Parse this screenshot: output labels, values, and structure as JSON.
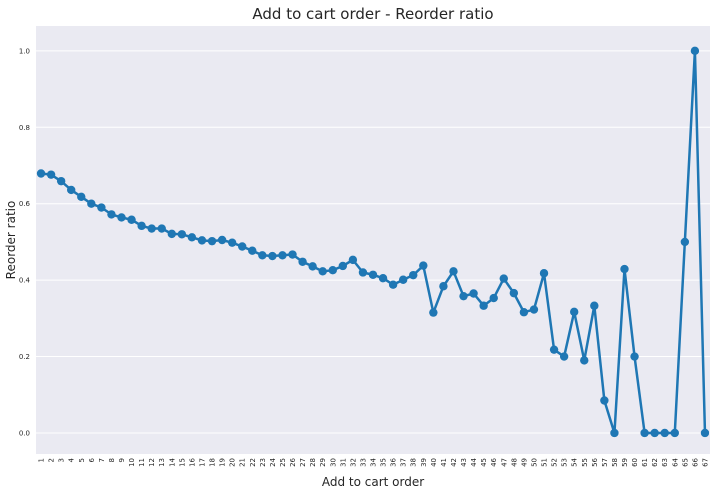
{
  "chart_data": {
    "type": "line",
    "title": "Add to cart order - Reorder ratio",
    "xlabel": "Add to cart order",
    "ylabel": "Reorder ratio",
    "ylim": [
      -0.055,
      1.065
    ],
    "yticks": [
      "0.0",
      "0.2",
      "0.4",
      "0.6",
      "0.8",
      "1.0"
    ],
    "grid": true,
    "colors": {
      "background": "#EAEAF2",
      "grid": "#FFFFFF",
      "line": "#1F77B4"
    },
    "categories": [
      "1",
      "2",
      "3",
      "4",
      "5",
      "6",
      "7",
      "8",
      "9",
      "10",
      "11",
      "12",
      "13",
      "14",
      "15",
      "16",
      "17",
      "18",
      "19",
      "20",
      "21",
      "22",
      "23",
      "24",
      "25",
      "26",
      "27",
      "28",
      "29",
      "30",
      "31",
      "32",
      "33",
      "34",
      "35",
      "36",
      "37",
      "38",
      "39",
      "40",
      "41",
      "42",
      "43",
      "44",
      "45",
      "46",
      "47",
      "48",
      "49",
      "50",
      "51",
      "52",
      "53",
      "54",
      "55",
      "56",
      "57",
      "58",
      "59",
      "60",
      "61",
      "62",
      "63",
      "64",
      "65",
      "66",
      "67"
    ],
    "series": [
      {
        "values": [
          0.679,
          0.676,
          0.659,
          0.636,
          0.618,
          0.6,
          0.59,
          0.572,
          0.564,
          0.558,
          0.542,
          0.535,
          0.535,
          0.521,
          0.52,
          0.512,
          0.504,
          0.502,
          0.505,
          0.498,
          0.488,
          0.477,
          0.465,
          0.463,
          0.465,
          0.467,
          0.448,
          0.436,
          0.423,
          0.426,
          0.437,
          0.453,
          0.42,
          0.414,
          0.405,
          0.388,
          0.401,
          0.413,
          0.438,
          0.315,
          0.384,
          0.423,
          0.358,
          0.365,
          0.333,
          0.353,
          0.404,
          0.366,
          0.316,
          0.323,
          0.418,
          0.218,
          0.2,
          0.317,
          0.19,
          0.333,
          0.085,
          0.0,
          0.429,
          0.2,
          0.0,
          0.0,
          0.0,
          0.0,
          0.5,
          1.0,
          0.0
        ]
      }
    ]
  }
}
